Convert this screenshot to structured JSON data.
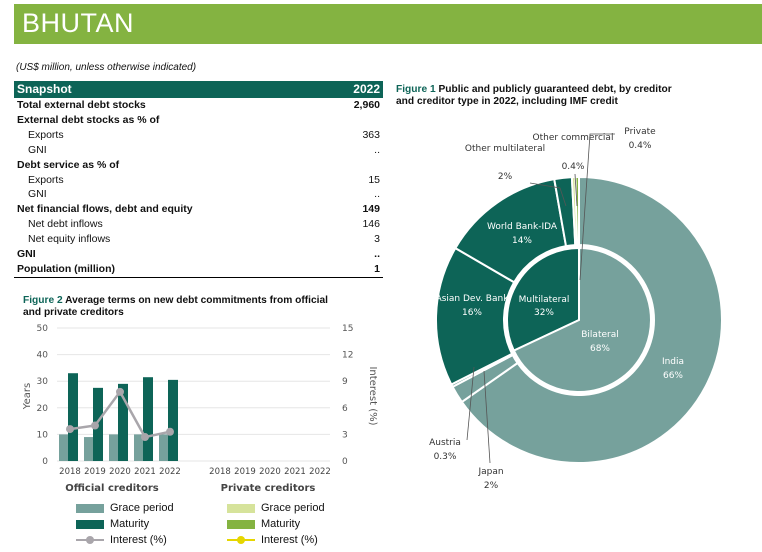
{
  "header": {
    "country": "BHUTAN",
    "units_note": "(US$ million, unless otherwise indicated)"
  },
  "snapshot": {
    "title": "Snapshot",
    "year": "2022",
    "rows": [
      {
        "label": "Total external debt stocks",
        "value": "2,960",
        "bold": true,
        "indent": false
      },
      {
        "label": "External debt stocks as % of",
        "value": "",
        "bold": true,
        "indent": false
      },
      {
        "label": "Exports",
        "value": "363",
        "bold": false,
        "indent": true
      },
      {
        "label": "GNI",
        "value": "..",
        "bold": false,
        "indent": true
      },
      {
        "label": "Debt service as % of",
        "value": "",
        "bold": true,
        "indent": false
      },
      {
        "label": "Exports",
        "value": "15",
        "bold": false,
        "indent": true
      },
      {
        "label": "GNI",
        "value": "..",
        "bold": false,
        "indent": true
      },
      {
        "label": "Net financial flows, debt and equity",
        "value": "149",
        "bold": true,
        "indent": false
      },
      {
        "label": "Net debt inflows",
        "value": "146",
        "bold": false,
        "indent": true
      },
      {
        "label": "Net equity inflows",
        "value": "3",
        "bold": false,
        "indent": true
      },
      {
        "label": "GNI",
        "value": "..",
        "bold": true,
        "indent": false
      },
      {
        "label": "Population (million)",
        "value": "1",
        "bold": true,
        "indent": false
      }
    ]
  },
  "figure1": {
    "label": "Figure 1",
    "title_line1": " Public and publicly guaranteed debt, by creditor",
    "title_line2": "and creditor type in 2022, including IMF credit"
  },
  "figure2": {
    "label": "Figure 2",
    "title_line1": " Average terms on new debt commitments from official",
    "title_line2": "and private creditors"
  },
  "colors": {
    "teal_dark": "#0d6457",
    "teal_light": "#76a19c",
    "green": "#84b341",
    "light_green": "#d6e39b",
    "grey": "#a9a6ab",
    "yellow": "#e6d600"
  },
  "chart_data": [
    {
      "type": "pie",
      "subtype": "nested-donut",
      "inner_ring": [
        {
          "label": "Multilateral",
          "value": 32,
          "text": "32%"
        },
        {
          "label": "Bilateral",
          "value": 68,
          "text": "68%"
        }
      ],
      "outer_ring": [
        {
          "label": "India",
          "value": 66,
          "text": "66%"
        },
        {
          "label": "Japan",
          "value": 2,
          "text": "2%"
        },
        {
          "label": "Austria",
          "value": 0.3,
          "text": "0.3%"
        },
        {
          "label": "Asian Dev. Bank",
          "value": 16,
          "text": "16%"
        },
        {
          "label": "World Bank-IDA",
          "value": 14,
          "text": "14%"
        },
        {
          "label": "Other multilateral",
          "value": 2,
          "text": "2%"
        },
        {
          "label": "Other commercial",
          "value": 0.4,
          "text": "0.4%"
        },
        {
          "label": "Private",
          "value": 0.4,
          "text": "0.4%"
        }
      ]
    },
    {
      "type": "bar",
      "categories": [
        "2018",
        "2019",
        "2020",
        "2021",
        "2022"
      ],
      "groups": [
        "Official creditors",
        "Private creditors"
      ],
      "ylabel": "Years",
      "y2label": "Interest (%)",
      "ylim": [
        0,
        50
      ],
      "y2lim": [
        0,
        15
      ],
      "yticks": [
        "0",
        "10",
        "20",
        "30",
        "40",
        "50"
      ],
      "y2ticks": [
        "0",
        "3",
        "6",
        "9",
        "12",
        "15"
      ],
      "series": [
        {
          "name": "Grace period",
          "group": "Official creditors",
          "values": [
            10,
            9,
            10,
            10,
            10
          ]
        },
        {
          "name": "Maturity",
          "group": "Official creditors",
          "values": [
            33,
            27.5,
            29,
            31.5,
            30.5
          ]
        },
        {
          "name": "Interest (%)",
          "group": "Official creditors",
          "axis": "y2",
          "values": [
            3.6,
            4.0,
            7.8,
            2.7,
            3.3
          ]
        },
        {
          "name": "Grace period",
          "group": "Private creditors",
          "values": [
            null,
            null,
            null,
            null,
            null
          ]
        },
        {
          "name": "Maturity",
          "group": "Private creditors",
          "values": [
            null,
            null,
            null,
            null,
            null
          ]
        },
        {
          "name": "Interest (%)",
          "group": "Private creditors",
          "axis": "y2",
          "values": [
            null,
            null,
            null,
            null,
            null
          ]
        }
      ],
      "legend": {
        "official": [
          "Grace period",
          "Maturity",
          "Interest (%)"
        ],
        "private": [
          "Grace period",
          "Maturity",
          "Interest (%)"
        ]
      }
    }
  ]
}
